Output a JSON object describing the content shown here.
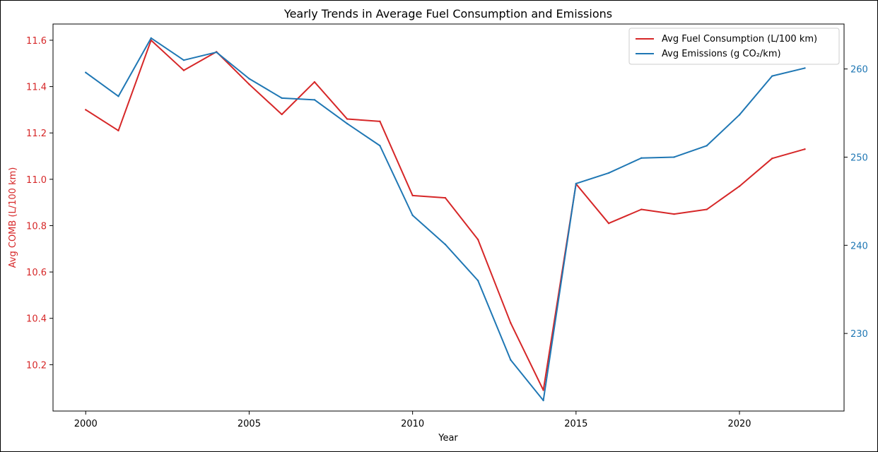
{
  "chart_data": {
    "type": "line",
    "title": "Yearly Trends in Average Fuel Consumption and Emissions",
    "xlabel": "Year",
    "ylabel_left": "Avg COMB (L/100 km)",
    "ylabel_right": "",
    "x": [
      2000,
      2001,
      2002,
      2003,
      2004,
      2005,
      2006,
      2007,
      2008,
      2009,
      2010,
      2011,
      2012,
      2013,
      2014,
      2015,
      2016,
      2017,
      2018,
      2019,
      2020,
      2021,
      2022
    ],
    "xticks": [
      "2000",
      "2005",
      "2010",
      "2015",
      "2020"
    ],
    "xlim": [
      1999.0,
      2023.2
    ],
    "ylim_left": [
      10.0,
      11.67
    ],
    "yticks_left": [
      "10.2",
      "10.4",
      "10.6",
      "10.8",
      "11.0",
      "11.2",
      "11.4",
      "11.6"
    ],
    "ylim_right": [
      221.2,
      265.1
    ],
    "yticks_right": [
      "230",
      "240",
      "250",
      "260"
    ],
    "series": [
      {
        "name": "Avg Fuel Consumption (L/100 km)",
        "axis": "left",
        "color": "#d62728",
        "values": [
          11.3,
          11.21,
          11.6,
          11.47,
          11.55,
          11.41,
          11.28,
          11.42,
          11.26,
          11.25,
          10.93,
          10.92,
          10.74,
          10.38,
          10.09,
          10.98,
          10.81,
          10.87,
          10.85,
          10.87,
          10.97,
          11.09,
          11.13
        ]
      },
      {
        "name": "Avg Emissions (g CO₂/km)",
        "axis": "right",
        "color": "#1f77b4",
        "values": [
          259.6,
          256.9,
          263.5,
          261.0,
          261.9,
          258.9,
          256.7,
          256.5,
          253.8,
          251.3,
          243.4,
          240.1,
          236.0,
          227.0,
          222.4,
          247.0,
          248.2,
          249.9,
          250.0,
          251.3,
          254.8,
          259.2,
          260.1
        ]
      }
    ],
    "legend_position": "top-right",
    "grid": false
  }
}
